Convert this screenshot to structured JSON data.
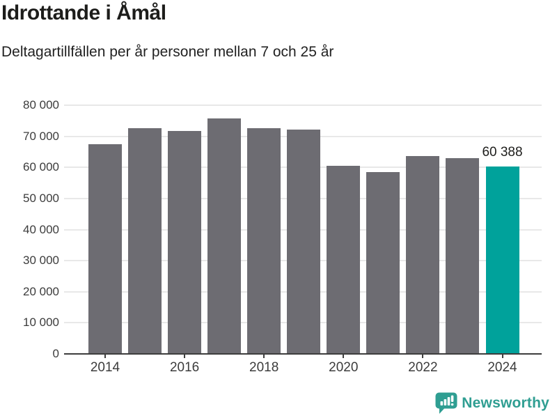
{
  "header": {
    "title": "Idrottande i Åmål",
    "subtitle": "Deltagartillfällen per år personer mellan 7 och 25 år"
  },
  "chart_data": {
    "type": "bar",
    "title": "Idrottande i Åmål",
    "subtitle": "Deltagartillfällen per år personer mellan 7 och 25 år",
    "categories": [
      "2014",
      "2015",
      "2016",
      "2017",
      "2018",
      "2019",
      "2020",
      "2021",
      "2022",
      "2023",
      "2024"
    ],
    "values": [
      67500,
      72600,
      71800,
      75700,
      72600,
      72200,
      60400,
      58400,
      63700,
      63000,
      60388
    ],
    "highlight_index": 10,
    "annotation": {
      "index": 10,
      "label": "60 388"
    },
    "ylim": [
      0,
      80000
    ],
    "ytick_step": 10000,
    "ytick_labels": [
      "0",
      "10 000",
      "20 000",
      "30 000",
      "40 000",
      "50 000",
      "60 000",
      "70 000",
      "80 000"
    ],
    "xticks": [
      {
        "label": "2014",
        "index": 0
      },
      {
        "label": "2016",
        "index": 2
      },
      {
        "label": "2018",
        "index": 4
      },
      {
        "label": "2020",
        "index": 6
      },
      {
        "label": "2022",
        "index": 8
      },
      {
        "label": "2024",
        "index": 10
      }
    ],
    "grid": true,
    "legend": "none",
    "bar_color": "#6d6c72",
    "highlight_color": "#00a29b",
    "gridline_color": "#e8e8e8",
    "axis_color": "#3d3d3d",
    "annotation_color": "#1d1d1b"
  },
  "footer": {
    "brand": "Newsworthy",
    "brand_color": "#2f9e92",
    "logo_icon": "bar-chart-speech-bubble"
  }
}
